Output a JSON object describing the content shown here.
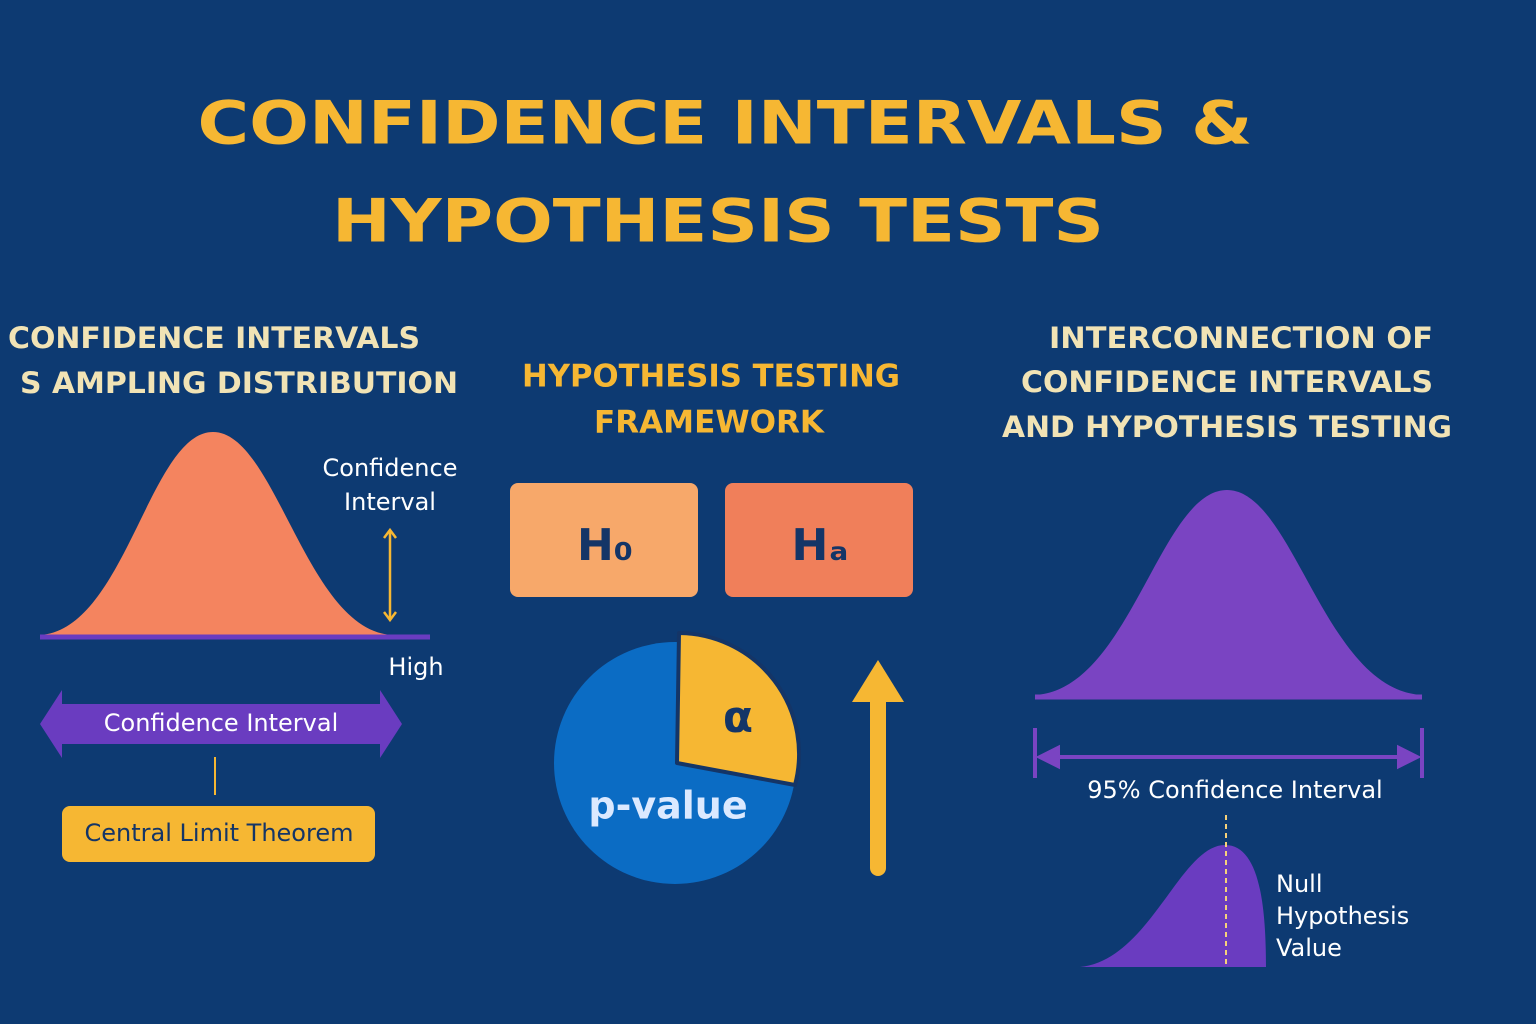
{
  "title": [
    "CONFIDENCE INTERVALS &",
    "HYPOTHESIS TESTS"
  ],
  "left": {
    "heading": [
      "CONFIDENCE INTERVALS",
      "S AMPLING DISTRIBUTION"
    ],
    "interval_label": [
      "Confidence",
      "Interval"
    ],
    "high": "High",
    "arrow_label": "Confidence Interval",
    "box": "Central Limit Theorem"
  },
  "middle": {
    "heading": [
      "HYPOTHESIS TESTING",
      "FRAMEWORK"
    ],
    "h0": "H₀",
    "ha": "Hₐ",
    "alpha": "α",
    "p_value": "p-value"
  },
  "right": {
    "heading": [
      "INTERCONNECTION OF",
      "CONFIDENCE INTERVALS",
      "AND HYPOTHESIS TESTING"
    ],
    "interval_label": "95% Confidence Interval",
    "null_label": [
      "Null",
      "Hypothesis",
      "Value"
    ]
  }
}
